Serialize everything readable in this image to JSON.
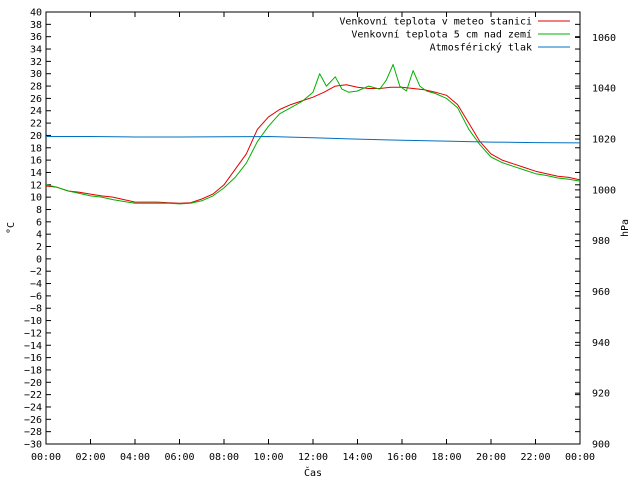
{
  "chart_data": {
    "type": "line",
    "title": "",
    "xlabel": "Čas",
    "ylabel": "°C",
    "y2label": "hPa",
    "x_ticks": [
      "00:00",
      "02:00",
      "04:00",
      "06:00",
      "08:00",
      "10:00",
      "12:00",
      "14:00",
      "16:00",
      "18:00",
      "20:00",
      "22:00",
      "00:00"
    ],
    "x_range_hours": [
      0,
      24
    ],
    "ylim": [
      -30,
      40
    ],
    "y_tick_step": 2,
    "y2lim": [
      900,
      1070
    ],
    "y2_ticks": [
      900,
      920,
      940,
      960,
      980,
      1000,
      1020,
      1040,
      1060
    ],
    "grid": false,
    "legend_position": "top-right",
    "series": [
      {
        "name": "Venkovní teplota v meteo stanici",
        "color": "#e00000",
        "axis": "left",
        "x": [
          0,
          0.5,
          1,
          1.5,
          2,
          2.5,
          3,
          3.5,
          4,
          4.5,
          5,
          5.5,
          6,
          6.5,
          7,
          7.5,
          8,
          8.5,
          9,
          9.5,
          10,
          10.5,
          11,
          11.5,
          12,
          12.5,
          13,
          13.5,
          14,
          14.5,
          15,
          15.5,
          16,
          16.5,
          17,
          17.5,
          18,
          18.5,
          19,
          19.5,
          20,
          20.5,
          21,
          21.5,
          22,
          22.5,
          23,
          23.5,
          24
        ],
        "values": [
          11.8,
          11.6,
          11.0,
          10.8,
          10.5,
          10.2,
          10.0,
          9.6,
          9.2,
          9.2,
          9.2,
          9.1,
          9.0,
          9.1,
          9.7,
          10.5,
          12.0,
          14.5,
          17.0,
          21.0,
          23.0,
          24.2,
          25.0,
          25.6,
          26.2,
          27.0,
          28.0,
          28.2,
          27.8,
          27.6,
          27.6,
          27.8,
          27.8,
          27.6,
          27.4,
          27.0,
          26.5,
          25.0,
          22.0,
          19.0,
          17.0,
          16.0,
          15.4,
          14.8,
          14.2,
          13.8,
          13.4,
          13.2,
          12.8
        ]
      },
      {
        "name": "Venkovní teplota 5 cm nad zemí",
        "color": "#00b000",
        "axis": "left",
        "x": [
          0,
          0.5,
          1,
          1.5,
          2,
          2.5,
          3,
          3.5,
          4,
          4.5,
          5,
          5.5,
          6,
          6.5,
          7,
          7.5,
          8,
          8.5,
          9,
          9.5,
          10,
          10.5,
          11,
          11.5,
          12,
          12.3,
          12.6,
          13,
          13.3,
          13.6,
          14,
          14.5,
          15,
          15.3,
          15.6,
          15.9,
          16.2,
          16.5,
          16.8,
          17.1,
          17.5,
          18,
          18.5,
          19,
          19.5,
          20,
          20.5,
          21,
          21.5,
          22,
          22.5,
          23,
          23.5,
          24
        ],
        "values": [
          12.0,
          11.6,
          11.0,
          10.6,
          10.2,
          10.0,
          9.6,
          9.3,
          9.0,
          9.0,
          9.0,
          9.0,
          8.9,
          9.0,
          9.4,
          10.2,
          11.5,
          13.2,
          15.5,
          19.0,
          21.5,
          23.5,
          24.5,
          25.5,
          27.0,
          30.0,
          28.0,
          29.5,
          27.5,
          27.0,
          27.2,
          28.0,
          27.5,
          29.0,
          31.5,
          28.0,
          27.2,
          30.5,
          28.0,
          27.2,
          26.8,
          26.0,
          24.5,
          21.0,
          18.5,
          16.5,
          15.6,
          15.0,
          14.4,
          13.8,
          13.5,
          13.1,
          12.9,
          12.6
        ]
      },
      {
        "name": "Atmosférický tlak",
        "color": "#0070c0",
        "axis": "right",
        "x": [
          0,
          2,
          4,
          6,
          8,
          10,
          12,
          14,
          16,
          18,
          20,
          22,
          24
        ],
        "values": [
          1021.0,
          1021.0,
          1020.8,
          1020.8,
          1020.9,
          1021.0,
          1020.5,
          1020.0,
          1019.5,
          1019.2,
          1018.8,
          1018.6,
          1018.5
        ]
      }
    ]
  }
}
